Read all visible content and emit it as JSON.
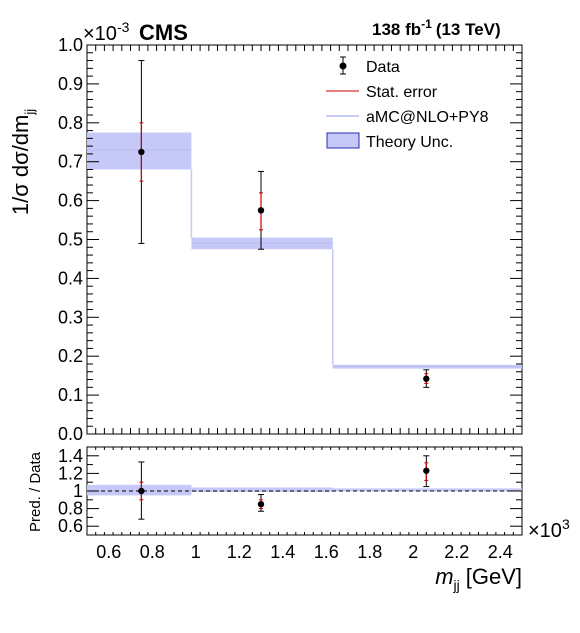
{
  "header": {
    "experiment": "CMS",
    "lumi": "138 fb",
    "lumi_exp": "-1",
    "energy": "(13 TeV)",
    "y_multiplier_base": "×10",
    "y_multiplier_exp": "-3",
    "x_multiplier_base": "×10",
    "x_multiplier_exp": "3"
  },
  "legend": {
    "data": "Data",
    "stat": "Stat. error",
    "mc": "aMC@NLO+PY8",
    "theory": "Theory Unc."
  },
  "axes": {
    "ylabel_main": "1/σ dσ/dm",
    "ylabel_main_sub": "jj",
    "ylabel_ratio": "Pred. / Data",
    "xlabel": "m",
    "xlabel_sub": "jj",
    "xlabel_unit": "[GeV]"
  },
  "colors": {
    "band": "#c6c8f7",
    "band_edge": "#2a2ab0",
    "stat": "#cc0000",
    "mc_line": "#b8bcf5"
  },
  "chart_data": [
    {
      "type": "step",
      "panel": "main",
      "xlim": [
        0.5,
        2.5
      ],
      "ylim": [
        0.0,
        1.0
      ],
      "y_scale_note": "×10^-3",
      "x_scale_note": "×10^3",
      "xticks": [
        0.6,
        0.8,
        1,
        1.2,
        1.4,
        1.6,
        1.8,
        2,
        2.2,
        2.4
      ],
      "xtick_labels": [
        "0.6",
        "0.8",
        "1",
        "1.2",
        "1.4",
        "1.6",
        "1.8",
        "2",
        "2.2",
        "2.4"
      ],
      "yticks": [
        0.0,
        0.1,
        0.2,
        0.3,
        0.4,
        0.5,
        0.6,
        0.7,
        0.8,
        0.9,
        1.0
      ],
      "ytick_labels": [
        "0.0",
        "0.1",
        "0.2",
        "0.3",
        "0.4",
        "0.5",
        "0.6",
        "0.7",
        "0.8",
        "0.9",
        "1.0"
      ],
      "bins": [
        {
          "lo": 0.5,
          "hi": 0.98,
          "band_lo": 0.68,
          "band_hi": 0.775,
          "pred": 0.73
        },
        {
          "lo": 0.98,
          "hi": 1.63,
          "band_lo": 0.475,
          "band_hi": 0.505,
          "pred": 0.49
        },
        {
          "lo": 1.63,
          "hi": 2.5,
          "band_lo": 0.168,
          "band_hi": 0.178,
          "pred": 0.173
        }
      ],
      "data": [
        {
          "x": 0.75,
          "y": 0.725,
          "tot_lo": 0.49,
          "tot_hi": 0.96,
          "stat_lo": 0.65,
          "stat_hi": 0.8
        },
        {
          "x": 1.3,
          "y": 0.575,
          "tot_lo": 0.475,
          "tot_hi": 0.675,
          "stat_lo": 0.525,
          "stat_hi": 0.62
        },
        {
          "x": 2.06,
          "y": 0.142,
          "tot_lo": 0.12,
          "tot_hi": 0.165,
          "stat_lo": 0.13,
          "stat_hi": 0.155
        }
      ]
    },
    {
      "type": "ratio",
      "panel": "ratio",
      "xlim": [
        0.5,
        2.5
      ],
      "ylim": [
        0.5,
        1.5
      ],
      "yticks": [
        0.6,
        0.8,
        1.0,
        1.2,
        1.4
      ],
      "ytick_labels": [
        "0.6",
        "0.8",
        "1",
        "1.2",
        "1.4"
      ],
      "reference_line": 1.0,
      "bins": [
        {
          "lo": 0.5,
          "hi": 0.98,
          "band_lo": 0.95,
          "band_hi": 1.07
        },
        {
          "lo": 0.98,
          "hi": 1.63,
          "band_lo": 0.99,
          "band_hi": 1.04
        },
        {
          "lo": 1.63,
          "hi": 2.5,
          "band_lo": 0.995,
          "band_hi": 1.03
        }
      ],
      "data": [
        {
          "x": 0.75,
          "y": 1.0,
          "tot_lo": 0.68,
          "tot_hi": 1.33,
          "stat_lo": 0.9,
          "stat_hi": 1.1
        },
        {
          "x": 1.3,
          "y": 0.85,
          "tot_lo": 0.77,
          "tot_hi": 0.96,
          "stat_lo": 0.8,
          "stat_hi": 0.9
        },
        {
          "x": 2.06,
          "y": 1.23,
          "tot_lo": 1.05,
          "tot_hi": 1.4,
          "stat_lo": 1.12,
          "stat_hi": 1.32
        }
      ]
    }
  ]
}
